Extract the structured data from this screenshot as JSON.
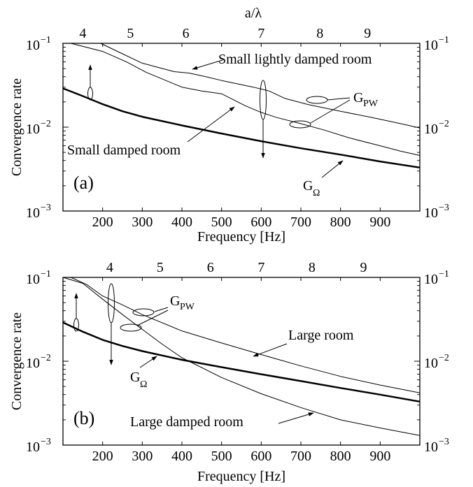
{
  "chart_data": [
    {
      "type": "line",
      "panel_label": "(a)",
      "xlabel": "Frequency [Hz]",
      "ylabel": "Convergence rate",
      "top_axis_label": "a/λ",
      "xlim": [
        100,
        1000
      ],
      "ylim": [
        0.001,
        0.1
      ],
      "yscale": "log",
      "x_ticks": [
        200,
        300,
        400,
        500,
        600,
        700,
        800,
        900
      ],
      "top_ticks": [
        {
          "label": "4",
          "freq": 150
        },
        {
          "label": "5",
          "freq": 270
        },
        {
          "label": "6",
          "freq": 410
        },
        {
          "label": "7",
          "freq": 600
        },
        {
          "label": "8",
          "freq": 748
        },
        {
          "label": "9",
          "freq": 868
        }
      ],
      "y_ticks": [
        {
          "value": 0.1,
          "base": "10",
          "exp": "−1"
        },
        {
          "value": 0.01,
          "base": "10",
          "exp": "−2"
        },
        {
          "value": 0.001,
          "base": "10",
          "exp": "−3"
        }
      ],
      "series": [
        {
          "x": [
            195,
            250,
            300,
            380,
            420,
            460,
            500,
            580,
            620,
            660,
            720,
            800,
            880,
            960,
            1000
          ],
          "y": [
            0.1,
            0.075,
            0.058,
            0.046,
            0.044,
            0.04,
            0.036,
            0.03,
            0.027,
            0.022,
            0.0185,
            0.0155,
            0.013,
            0.0108,
            0.0098
          ],
          "width": 1
        },
        {
          "x": [
            120,
            200,
            260,
            310,
            400,
            450,
            500,
            560,
            600,
            640,
            700,
            760,
            820,
            900,
            950,
            1000
          ],
          "y": [
            0.1,
            0.08,
            0.06,
            0.045,
            0.03,
            0.027,
            0.025,
            0.018,
            0.015,
            0.013,
            0.011,
            0.0092,
            0.0075,
            0.006,
            0.0052,
            0.0046
          ],
          "width": 1
        },
        {
          "x": [
            100,
            150,
            200,
            250,
            300,
            400,
            500,
            600,
            700,
            800,
            900,
            1000
          ],
          "y": [
            0.029,
            0.0235,
            0.0188,
            0.0155,
            0.0133,
            0.0105,
            0.0084,
            0.0068,
            0.0056,
            0.0047,
            0.0039,
            0.0033
          ],
          "width": 2.5
        }
      ],
      "annotations": [
        {
          "text": "Small lightly damped room"
        },
        {
          "text": "Small damped room"
        },
        {
          "main": "G",
          "sub": "PW"
        },
        {
          "main": "G",
          "sub": "Ω"
        }
      ]
    },
    {
      "type": "line",
      "panel_label": "(b)",
      "xlabel": "Frequency [Hz]",
      "ylabel": "Convergence rate",
      "xlim": [
        100,
        1000
      ],
      "ylim": [
        0.001,
        0.1
      ],
      "yscale": "log",
      "x_ticks": [
        200,
        300,
        400,
        500,
        600,
        700,
        800,
        900
      ],
      "top_ticks": [
        {
          "label": "4",
          "freq": 218
        },
        {
          "label": "5",
          "freq": 345
        },
        {
          "label": "6",
          "freq": 472
        },
        {
          "label": "7",
          "freq": 600
        },
        {
          "label": "8",
          "freq": 728
        },
        {
          "label": "9",
          "freq": 858
        }
      ],
      "y_ticks": [
        {
          "value": 0.1,
          "base": "10",
          "exp": "−1"
        },
        {
          "value": 0.01,
          "base": "10",
          "exp": "−2"
        },
        {
          "value": 0.001,
          "base": "10",
          "exp": "−3"
        }
      ],
      "series": [
        {
          "x": [
            120,
            160,
            200,
            250,
            300,
            400,
            500,
            600,
            700,
            800,
            900,
            1000
          ],
          "y": [
            0.1,
            0.082,
            0.06,
            0.047,
            0.036,
            0.023,
            0.0165,
            0.012,
            0.0088,
            0.0066,
            0.0052,
            0.0042
          ],
          "width": 1
        },
        {
          "x": [
            100,
            150,
            200,
            250,
            300,
            350,
            400,
            500,
            600,
            700,
            800,
            900,
            1000
          ],
          "y": [
            0.1,
            0.085,
            0.055,
            0.036,
            0.024,
            0.016,
            0.011,
            0.0064,
            0.0041,
            0.0028,
            0.002,
            0.0016,
            0.0013
          ],
          "width": 1
        },
        {
          "x": [
            100,
            150,
            200,
            250,
            300,
            400,
            500,
            600,
            700,
            800,
            900,
            1000
          ],
          "y": [
            0.029,
            0.0225,
            0.018,
            0.0152,
            0.0132,
            0.0104,
            0.0085,
            0.007,
            0.0058,
            0.0048,
            0.004,
            0.0033
          ],
          "width": 2.5
        }
      ],
      "annotations": [
        {
          "text": "Large room"
        },
        {
          "text": "Large damped room"
        },
        {
          "main": "G",
          "sub": "PW"
        },
        {
          "main": "G",
          "sub": "Ω"
        }
      ]
    }
  ]
}
